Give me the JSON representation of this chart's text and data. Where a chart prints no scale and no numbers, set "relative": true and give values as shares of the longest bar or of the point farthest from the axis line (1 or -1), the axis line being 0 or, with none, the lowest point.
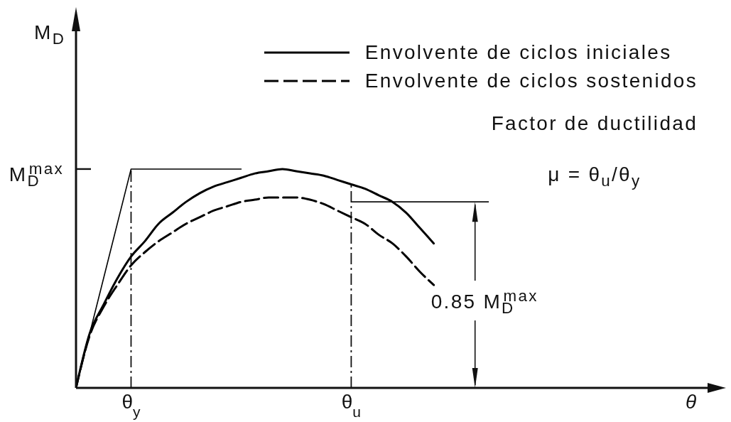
{
  "chart_data": {
    "type": "line",
    "relative": true,
    "xlabel": "θ",
    "categories": [
      null,
      null,
      null,
      null,
      "θ$_{y}$",
      null,
      null,
      null,
      null,
      null,
      null,
      null,
      null,
      null,
      null,
      null,
      null,
      null,
      null,
      null,
      "θ$_{u}$",
      null,
      null,
      null,
      null,
      null,
      null,
      null,
      null,
      null,
      null,
      null,
      null,
      null,
      null,
      null,
      null,
      null,
      null,
      null,
      null,
      null,
      null,
      null,
      null,
      null,
      null
    ],
    "series": [
      {
        "name": "Envolvente de ciclos iniciales",
        "color": "#000000",
        "values": [
          0,
          0.25,
          0.38,
          0.5,
          0.6,
          0.67,
          0.75,
          0.8,
          0.85,
          0.89,
          0.92,
          0.94,
          0.96,
          0.98,
          0.99,
          1,
          0.99,
          0.98,
          0.97,
          0.95,
          0.93,
          0.91,
          0.88,
          0.85,
          0.8,
          0.73,
          0.66,
          null,
          null,
          null,
          null,
          null,
          null,
          null,
          null,
          null,
          null,
          null,
          null,
          null,
          null,
          null,
          null,
          null,
          null,
          null,
          null
        ]
      },
      {
        "name": "Envolvente de ciclos sostenidos",
        "color": "#000000",
        "line_style": "dashed",
        "values": [
          0,
          0.24,
          0.37,
          0.47,
          0.56,
          0.62,
          0.67,
          0.71,
          0.75,
          0.78,
          0.81,
          0.83,
          0.85,
          0.86,
          0.87,
          0.87,
          0.87,
          0.86,
          0.84,
          0.81,
          0.78,
          0.75,
          0.7,
          0.66,
          0.6,
          0.53,
          0.47,
          null,
          null,
          null,
          null,
          null,
          null,
          null,
          null,
          null,
          null,
          null,
          null,
          null,
          null,
          null,
          null,
          null,
          null,
          null,
          null
        ]
      },
      {
        "color": "#000000",
        "values": [
          0,
          0.25,
          0.5,
          0.75,
          1,
          1,
          1,
          1,
          1,
          1,
          1,
          1,
          1,
          null,
          null,
          null,
          null,
          null,
          null,
          null,
          null,
          null,
          null,
          null,
          null,
          null,
          null,
          null,
          null,
          null,
          null,
          null,
          null,
          null,
          null,
          null,
          null,
          null,
          null,
          null,
          null,
          null,
          null,
          null,
          null,
          null,
          null
        ]
      }
    ],
    "ref_lines": [
      {
        "axis": "x",
        "value": "θ$_{y}$",
        "line_style": "dashed"
      },
      {
        "axis": "x",
        "value": "θ$_{u}$",
        "line_style": "dashed"
      },
      {
        "axis": "y",
        "value": 1,
        "label": "M$_{D}$$^{max}$"
      },
      {
        "axis": "y",
        "value": 0.85,
        "label": "0.85 M$_{D}$$^{max}$"
      }
    ],
    "annotations": [
      "M$_{D}$",
      "Factor de ductilidad",
      "μ = θ$_{u}$/θ$_{y}$"
    ],
    "legend": "top right"
  }
}
